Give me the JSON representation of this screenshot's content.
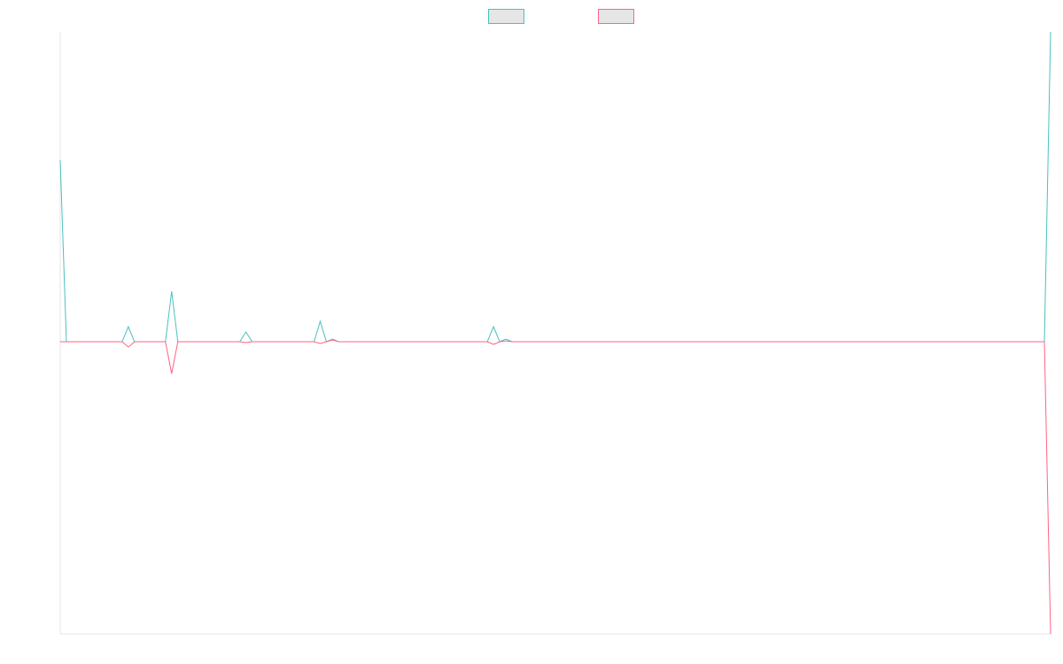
{
  "chart_data": {
    "type": "line",
    "ylim": [
      -33,
      35
    ],
    "legend": "top",
    "legend_fill": "#e6e6e6",
    "series": [
      {
        "color": "#4bc0c0",
        "values": [
          20.5,
          0,
          0,
          0,
          0,
          0,
          0,
          0,
          0,
          0,
          0,
          1.7,
          0,
          0,
          0,
          0,
          0,
          0,
          5.7,
          0,
          0,
          0,
          0,
          0,
          0,
          0,
          0,
          0,
          0,
          0,
          1.1,
          0,
          0,
          0,
          0,
          0,
          0,
          0,
          0,
          0,
          0,
          0,
          2.3,
          0,
          0.3,
          0,
          0,
          0,
          0,
          0,
          0,
          0,
          0,
          0,
          0,
          0,
          0,
          0,
          0,
          0,
          0,
          0,
          0,
          0,
          0,
          0,
          0,
          0,
          0,
          0,
          1.7,
          0,
          0.3,
          0,
          0,
          0,
          0,
          0,
          0,
          0,
          0,
          0,
          0,
          0,
          0,
          0,
          0,
          0,
          0,
          0,
          0,
          0,
          0,
          0,
          0,
          0,
          0,
          0,
          0,
          0,
          0,
          0,
          0,
          0,
          0,
          0,
          0,
          0,
          0,
          0,
          0,
          0,
          0,
          0,
          0,
          0,
          0,
          0,
          0,
          0,
          0,
          0,
          0,
          0,
          0,
          0,
          0,
          0,
          0,
          0,
          0,
          0,
          0,
          0,
          0,
          0,
          0,
          0,
          0,
          0,
          0,
          0,
          0,
          0,
          0,
          0,
          0,
          0,
          0,
          0,
          0,
          0,
          0,
          0,
          0,
          0,
          0,
          0,
          0,
          0,
          35
        ]
      },
      {
        "color": "#ff6384",
        "values": [
          0,
          0,
          0,
          0,
          0,
          0,
          0,
          0,
          0,
          0,
          0,
          -0.6,
          0,
          0,
          0,
          0,
          0,
          0,
          -3.6,
          0,
          0,
          0,
          0,
          0,
          0,
          0,
          0,
          0,
          0,
          0,
          -0.1,
          0,
          0,
          0,
          0,
          0,
          0,
          0,
          0,
          0,
          0,
          0,
          -0.2,
          0,
          0.2,
          0,
          0,
          0,
          0,
          0,
          0,
          0,
          0,
          0,
          0,
          0,
          0,
          0,
          0,
          0,
          0,
          0,
          0,
          0,
          0,
          0,
          0,
          0,
          0,
          0,
          -0.3,
          0,
          0.1,
          0,
          0,
          0,
          0,
          0,
          0,
          0,
          0,
          0,
          0,
          0,
          0,
          0,
          0,
          0,
          0,
          0,
          0,
          0,
          0,
          0,
          0,
          0,
          0,
          0,
          0,
          0,
          0,
          0,
          0,
          0,
          0,
          0,
          0,
          0,
          0,
          0,
          0,
          0,
          0,
          0,
          0,
          0,
          0,
          0,
          0,
          0,
          0,
          0,
          0,
          0,
          0,
          0,
          0,
          0,
          0,
          0,
          0,
          0,
          0,
          0,
          0,
          0,
          0,
          0,
          0,
          0,
          0,
          0,
          0,
          0,
          0,
          0,
          0,
          0,
          0,
          0,
          0,
          0,
          0,
          0,
          0,
          0,
          0,
          0,
          0,
          0,
          -33
        ]
      }
    ]
  }
}
